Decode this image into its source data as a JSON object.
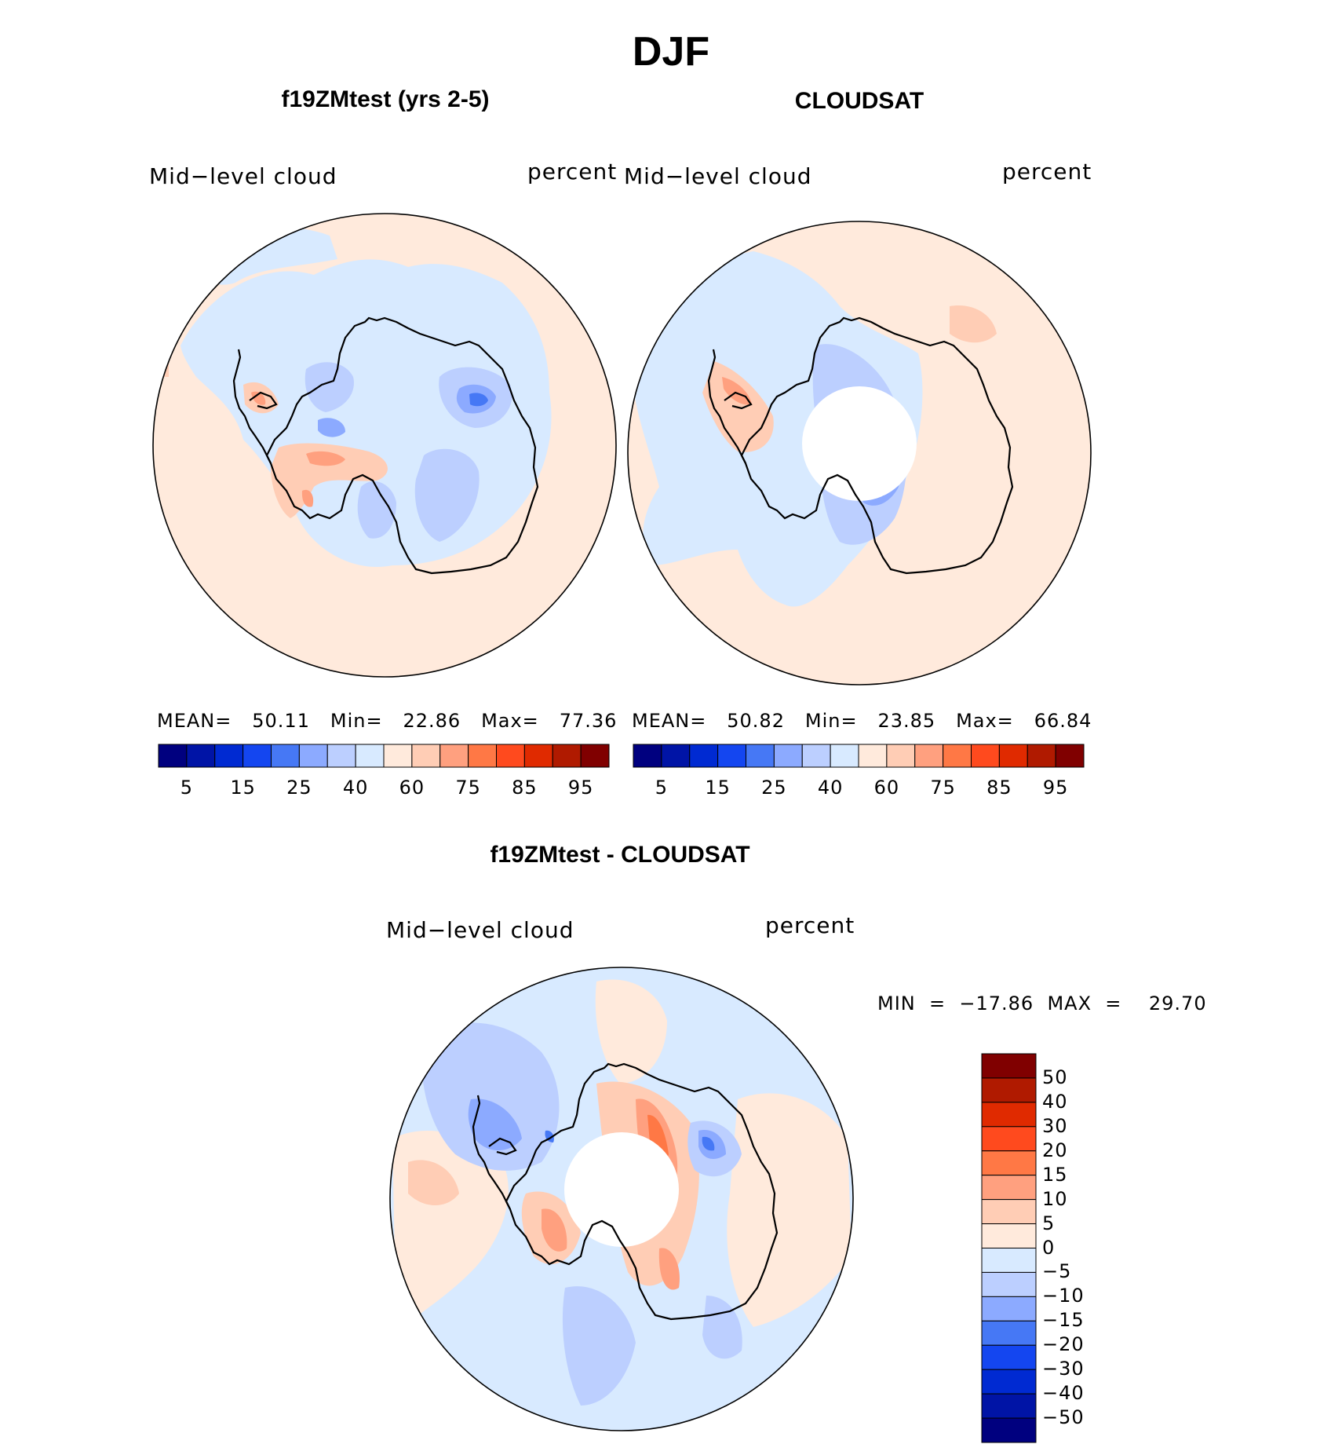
{
  "page": {
    "title": "DJF"
  },
  "colors": {
    "model_scale": [
      "#00007f",
      "#0014a6",
      "#002ad2",
      "#1446f0",
      "#4678f5",
      "#8caaff",
      "#bccfff",
      "#d8eaff",
      "#ffeadc",
      "#ffcdb5",
      "#ffa07f",
      "#ff7845",
      "#ff4a1e",
      "#e02a00",
      "#b01a00",
      "#800000"
    ],
    "diff_scale": [
      "#00007f",
      "#0014a6",
      "#002ad2",
      "#1446f0",
      "#4678f5",
      "#8caaff",
      "#bccfff",
      "#d8eaff",
      "#ffeadc",
      "#ffcdb5",
      "#ffa07f",
      "#ff7845",
      "#ff4a1e",
      "#e02a00",
      "#b01a00",
      "#800000"
    ],
    "coast": "#000000"
  },
  "panels": [
    {
      "id": "model",
      "title": "f19ZMtest (yrs 2-5)",
      "left_label": "Mid−level  cloud",
      "right_label": "percent",
      "stats": {
        "mean_label": "MEAN=",
        "mean": "50.11",
        "min_label": "Min=",
        "min": "22.86",
        "max_label": "Max=",
        "max": "77.36"
      },
      "colorbar_ticks": [
        "5",
        "15",
        "25",
        "40",
        "60",
        "75",
        "85",
        "95"
      ]
    },
    {
      "id": "obs",
      "title": "CLOUDSAT",
      "left_label": "Mid−level  cloud",
      "right_label": "percent",
      "stats": {
        "mean_label": "MEAN=",
        "mean": "50.82",
        "min_label": "Min=",
        "min": "23.85",
        "max_label": "Max=",
        "max": "66.84"
      },
      "colorbar_ticks": [
        "5",
        "15",
        "25",
        "40",
        "60",
        "75",
        "85",
        "95"
      ]
    },
    {
      "id": "diff",
      "title": "f19ZMtest - CLOUDSAT",
      "left_label": "Mid−level  cloud",
      "right_label": "percent",
      "stats_line": "MIN  =  −17.86  MAX  =    29.70",
      "colorbar_ticks": [
        "50",
        "40",
        "30",
        "20",
        "15",
        "10",
        "5",
        "0",
        "−5",
        "−10",
        "−15",
        "−20",
        "−30",
        "−40",
        "−50"
      ]
    }
  ]
}
